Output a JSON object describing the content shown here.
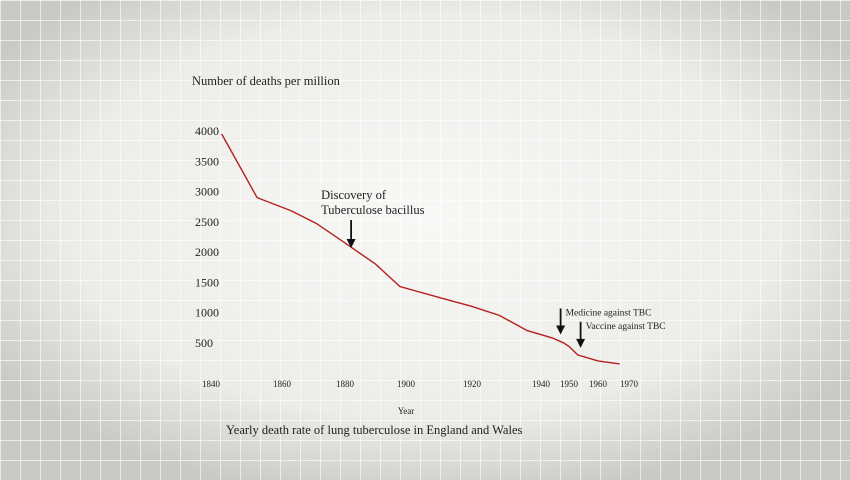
{
  "chart_data": {
    "type": "line",
    "ylabel": "Number of deaths per million",
    "xlabel": "Year",
    "caption": "Yearly death rate of lung tuberculose in England and Wales",
    "x_ticks": [
      1840,
      1860,
      1880,
      1900,
      1920,
      1940,
      1950,
      1960,
      1970
    ],
    "y_ticks": [
      500,
      1000,
      1500,
      2000,
      2500,
      3000,
      3500,
      4000
    ],
    "xlim": [
      1840,
      1970
    ],
    "ylim": [
      0,
      4000
    ],
    "line_color": "#b5201e",
    "series": [
      {
        "x": [
          1843,
          1853,
          1863,
          1871,
          1880,
          1890,
          1898,
          1910,
          1920,
          1928,
          1936,
          1944,
          1948,
          1950,
          1953,
          1960,
          1967
        ],
        "values": [
          3950,
          2900,
          2680,
          2470,
          2150,
          1800,
          1430,
          1250,
          1100,
          950,
          700,
          580,
          500,
          440,
          300,
          200,
          150
        ]
      }
    ],
    "annotations": [
      {
        "lines": [
          "Discovery of",
          "Tuberculose bacillus"
        ],
        "x": 1882,
        "y": 2000
      },
      {
        "lines": [
          "Medicine against TBC"
        ],
        "x": 1947,
        "y": 570
      },
      {
        "lines": [
          "Vaccine against TBC"
        ],
        "x": 1954,
        "y": 350
      }
    ]
  }
}
